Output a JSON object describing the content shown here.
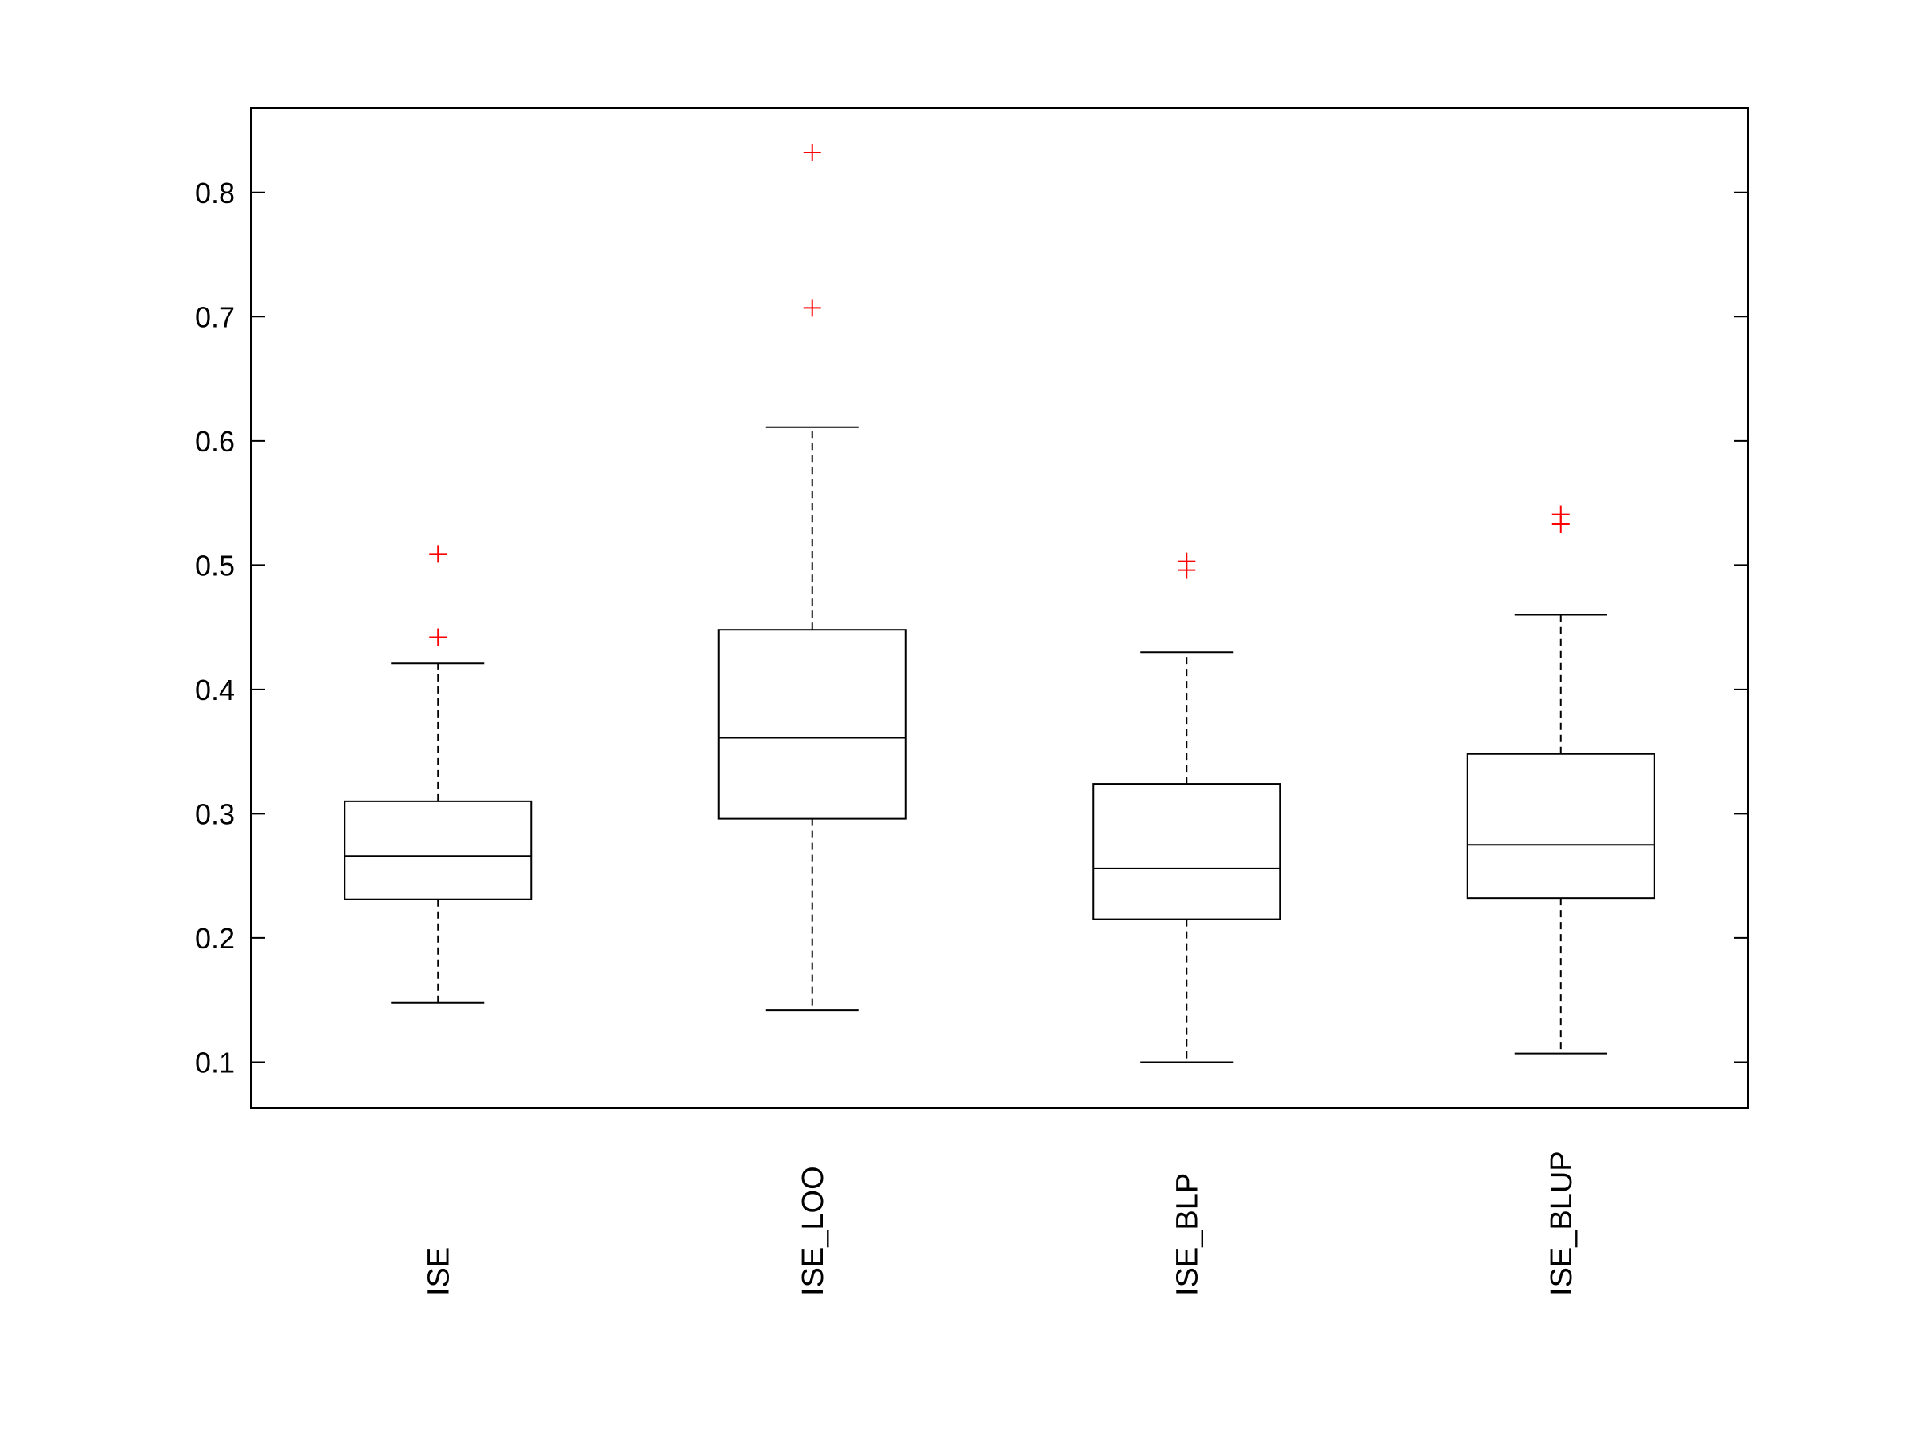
{
  "chart_data": {
    "type": "boxplot",
    "title": "",
    "xlabel": "",
    "ylabel": "",
    "categories": [
      "ISE",
      "ISE_LOO",
      "ISE_BLP",
      "ISE_BLUP"
    ],
    "ylim": [
      0.063,
      0.868
    ],
    "yticks": [
      0.1,
      0.2,
      0.3,
      0.4,
      0.5,
      0.6,
      0.7,
      0.8
    ],
    "ytick_labels": [
      "0.1",
      "0.2",
      "0.3",
      "0.4",
      "0.5",
      "0.6",
      "0.7",
      "0.8"
    ],
    "grid": false,
    "boxes": [
      {
        "name": "ISE",
        "whisker_low": 0.148,
        "q1": 0.231,
        "median": 0.266,
        "q3": 0.31,
        "whisker_high": 0.421,
        "outliers": [
          0.442,
          0.509
        ]
      },
      {
        "name": "ISE_LOO",
        "whisker_low": 0.142,
        "q1": 0.296,
        "median": 0.361,
        "q3": 0.448,
        "whisker_high": 0.611,
        "outliers": [
          0.707,
          0.832
        ]
      },
      {
        "name": "ISE_BLP",
        "whisker_low": 0.1,
        "q1": 0.215,
        "median": 0.256,
        "q3": 0.324,
        "whisker_high": 0.43,
        "outliers": [
          0.496,
          0.503
        ]
      },
      {
        "name": "ISE_BLUP",
        "whisker_low": 0.107,
        "q1": 0.232,
        "median": 0.275,
        "q3": 0.348,
        "whisker_high": 0.46,
        "outliers": [
          0.533,
          0.541
        ]
      }
    ],
    "colors": {
      "box": "#000000",
      "median": "#000000",
      "whisker": "#000000",
      "outlier": "#ff0000",
      "axes": "#000000",
      "background": "#ffffff"
    },
    "outlier_marker": "plus"
  }
}
